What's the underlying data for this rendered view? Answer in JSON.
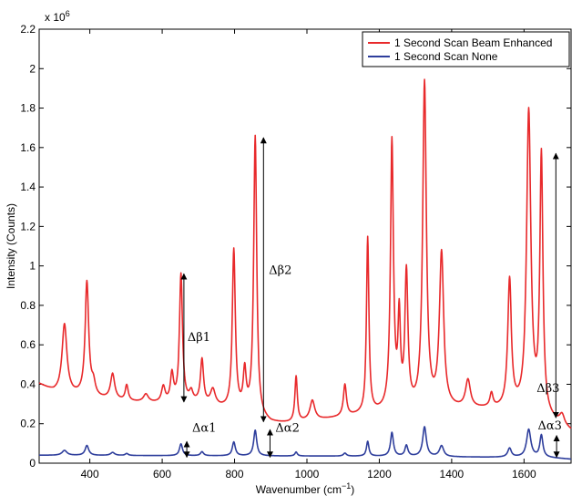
{
  "chart_data": {
    "type": "line",
    "xlabel": "Wavenumber (cm",
    "xlabel_sup": "−1",
    "xlabel_close": ")",
    "ylabel": "Intensity (Counts)",
    "exponent_label": "x 10",
    "exponent_power": "6",
    "xlim": [
      260,
      1730
    ],
    "ylim": [
      0,
      2.2
    ],
    "x_ticks": [
      400,
      600,
      800,
      1000,
      1200,
      1400,
      1600
    ],
    "x_tick_labels": [
      "400",
      "600",
      "800",
      "1000",
      "1200",
      "1400",
      "1600"
    ],
    "y_ticks": [
      0,
      0.2,
      0.4,
      0.6,
      0.8,
      1,
      1.2,
      1.4,
      1.6,
      1.8,
      2,
      2.2
    ],
    "y_tick_labels": [
      "0",
      "0.2",
      "0.4",
      "0.6",
      "0.8",
      "1",
      "1.2",
      "1.4",
      "1.6",
      "1.8",
      "2",
      "2.2"
    ],
    "grid": false,
    "legend_position": "top-right",
    "series": [
      {
        "name": "1 Second Scan Beam Enhanced",
        "color": "#e8292b",
        "baseline": [
          [
            260,
            0.4
          ],
          [
            300,
            0.36
          ],
          [
            400,
            0.33
          ],
          [
            500,
            0.31
          ],
          [
            600,
            0.3
          ],
          [
            700,
            0.3
          ],
          [
            800,
            0.26
          ],
          [
            870,
            0.22
          ],
          [
            900,
            0.2
          ],
          [
            950,
            0.2
          ],
          [
            1000,
            0.21
          ],
          [
            1050,
            0.22
          ],
          [
            1100,
            0.23
          ],
          [
            1150,
            0.24
          ],
          [
            1200,
            0.25
          ],
          [
            1300,
            0.26
          ],
          [
            1400,
            0.27
          ],
          [
            1500,
            0.27
          ],
          [
            1580,
            0.26
          ],
          [
            1650,
            0.23
          ],
          [
            1700,
            0.19
          ],
          [
            1730,
            0.16
          ]
        ],
        "peaks": [
          [
            330,
            0.35,
            8
          ],
          [
            392,
            0.58,
            6
          ],
          [
            410,
            0.06,
            6
          ],
          [
            463,
            0.13,
            7
          ],
          [
            502,
            0.08,
            5
          ],
          [
            555,
            0.04,
            8
          ],
          [
            603,
            0.08,
            6
          ],
          [
            627,
            0.14,
            5
          ],
          [
            652,
            0.65,
            5
          ],
          [
            680,
            0.05,
            6
          ],
          [
            710,
            0.22,
            5
          ],
          [
            740,
            0.08,
            8
          ],
          [
            798,
            0.81,
            5
          ],
          [
            828,
            0.2,
            5
          ],
          [
            857,
            1.42,
            5
          ],
          [
            970,
            0.23,
            4
          ],
          [
            1015,
            0.1,
            8
          ],
          [
            1105,
            0.16,
            5
          ],
          [
            1168,
            0.89,
            4
          ],
          [
            1235,
            1.36,
            5
          ],
          [
            1255,
            0.44,
            4
          ],
          [
            1275,
            0.68,
            5
          ],
          [
            1325,
            1.65,
            6
          ],
          [
            1372,
            0.78,
            7
          ],
          [
            1445,
            0.14,
            8
          ],
          [
            1510,
            0.07,
            5
          ],
          [
            1560,
            0.65,
            6
          ],
          [
            1613,
            1.52,
            7
          ],
          [
            1648,
            1.3,
            5
          ],
          [
            1705,
            0.05,
            8
          ]
        ]
      },
      {
        "name": "1 Second Scan None",
        "color": "#2e3e9c",
        "baseline": [
          [
            260,
            0.04
          ],
          [
            1200,
            0.035
          ],
          [
            1500,
            0.03
          ],
          [
            1650,
            0.03
          ],
          [
            1730,
            0.02
          ]
        ],
        "peaks": [
          [
            330,
            0.025,
            8
          ],
          [
            392,
            0.05,
            6
          ],
          [
            463,
            0.015,
            7
          ],
          [
            502,
            0.01,
            5
          ],
          [
            652,
            0.06,
            5
          ],
          [
            710,
            0.02,
            5
          ],
          [
            798,
            0.07,
            5
          ],
          [
            857,
            0.13,
            5
          ],
          [
            970,
            0.02,
            4
          ],
          [
            1105,
            0.015,
            5
          ],
          [
            1168,
            0.075,
            4
          ],
          [
            1235,
            0.12,
            5
          ],
          [
            1275,
            0.055,
            5
          ],
          [
            1325,
            0.15,
            6
          ],
          [
            1372,
            0.055,
            7
          ],
          [
            1560,
            0.045,
            6
          ],
          [
            1613,
            0.14,
            7
          ],
          [
            1648,
            0.11,
            5
          ]
        ]
      }
    ],
    "annotations": [
      {
        "label": "Δβ1",
        "arrow_x": 660,
        "y_low": 0.31,
        "y_high": 0.96,
        "label_x": 670,
        "label_y": 0.62
      },
      {
        "label": "Δβ2",
        "arrow_x": 880,
        "y_low": 0.21,
        "y_high": 1.65,
        "label_x": 895,
        "label_y": 0.96
      },
      {
        "label": "Δβ3",
        "arrow_x": 1688,
        "y_low": 0.23,
        "y_high": 1.57,
        "label_x": 1635,
        "label_y": 0.36
      },
      {
        "label": "Δα1",
        "arrow_x": 668,
        "y_low": 0.03,
        "y_high": 0.11,
        "label_x": 683,
        "label_y": 0.16
      },
      {
        "label": "Δα2",
        "arrow_x": 898,
        "y_low": 0.03,
        "y_high": 0.17,
        "label_x": 913,
        "label_y": 0.16
      },
      {
        "label": "Δα3",
        "arrow_x": 1690,
        "y_low": 0.03,
        "y_high": 0.14,
        "label_x": 1638,
        "label_y": 0.17
      }
    ]
  }
}
